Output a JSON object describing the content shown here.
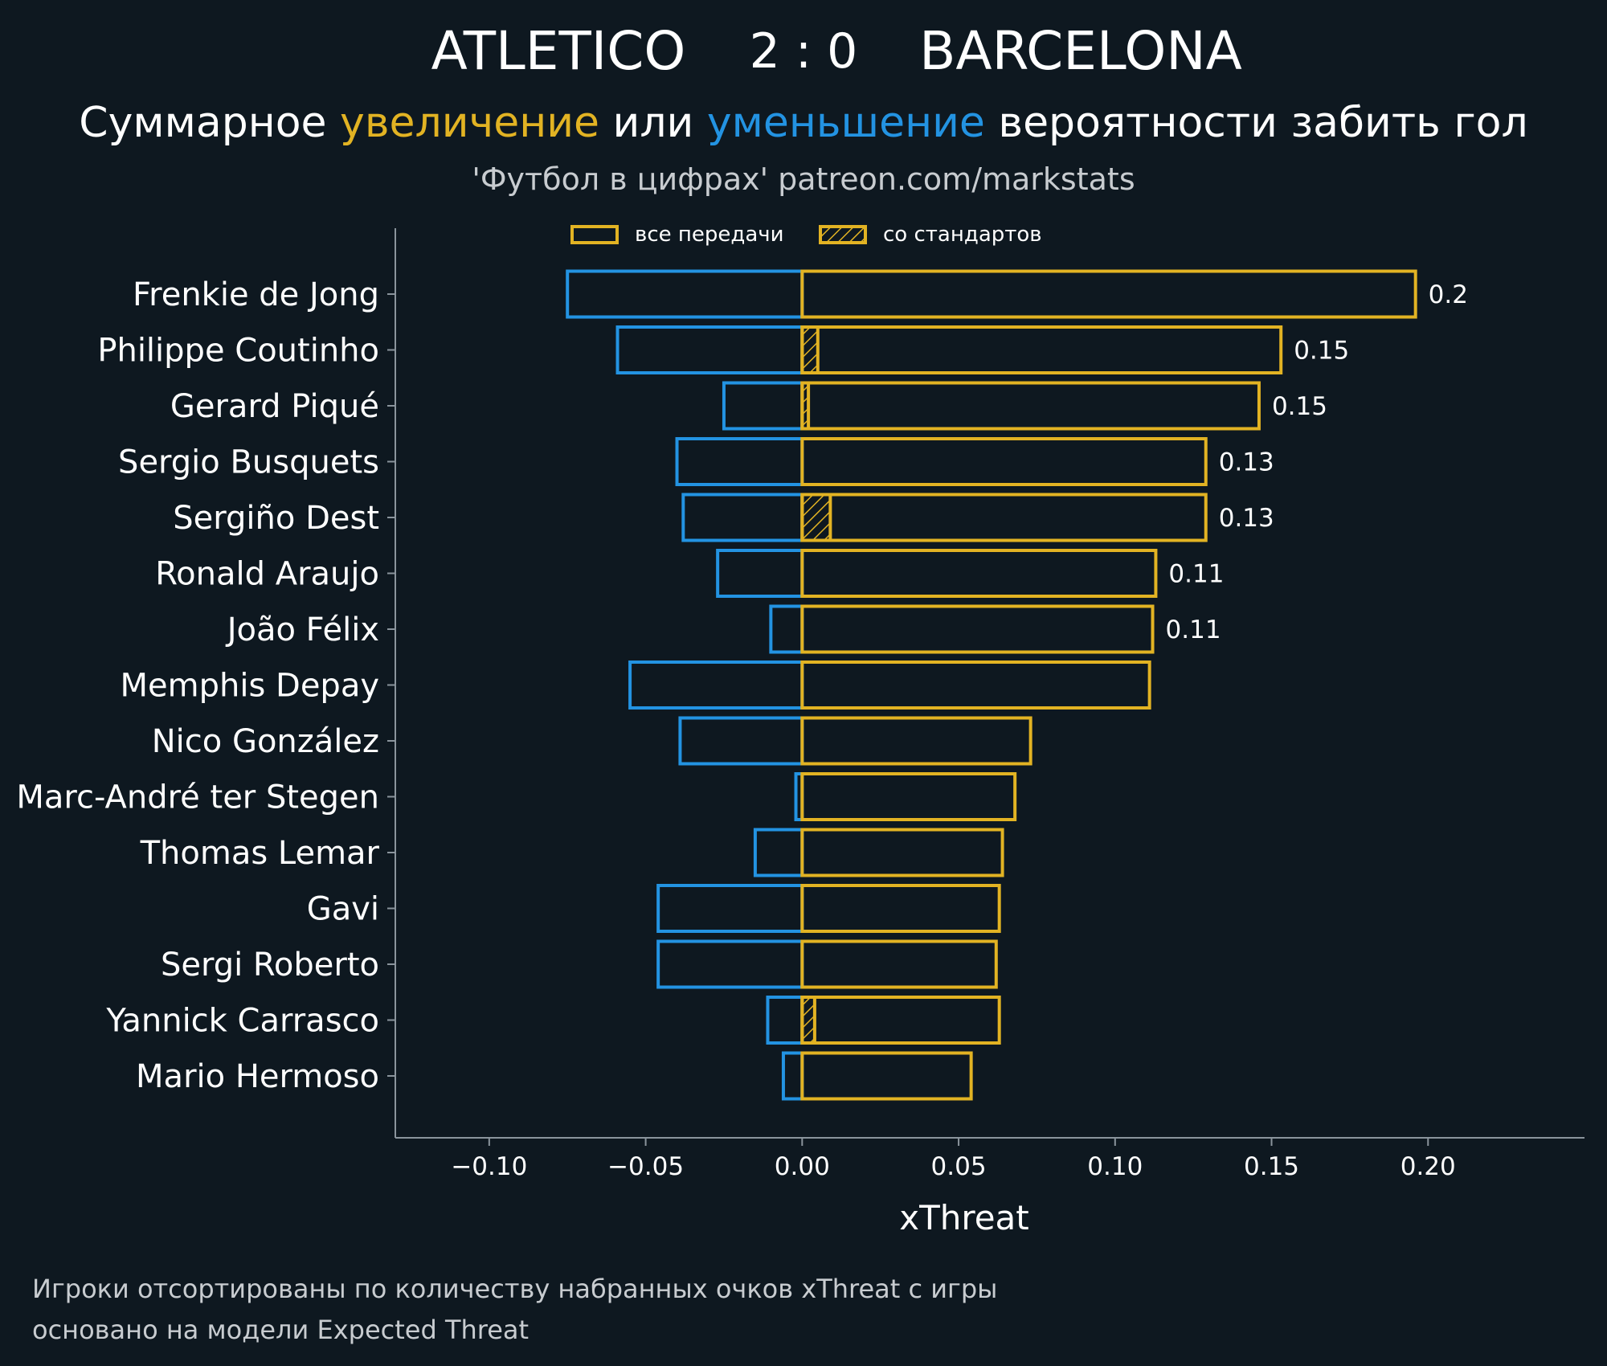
{
  "header": {
    "team_home": "ATLETICO",
    "score": "2 : 0",
    "team_away": "BARCELONA",
    "subtitle_pre": "Суммарное ",
    "subtitle_increase": "увеличение",
    "subtitle_mid": " или ",
    "subtitle_decrease": "уменьшение",
    "subtitle_post": " вероятности забить гол",
    "credit": "'Футбол в цифрах' patreon.com/markstats"
  },
  "footer": {
    "line1": "Игроки отсортированы по количеству набранных очков xThreat с игры",
    "line2": "основано на модели Expected Threat"
  },
  "colors": {
    "background": "#0e1820",
    "increase": "#e2b323",
    "decrease": "#2393e2",
    "text": "#ffffff",
    "muted_text": "#c8ccd0",
    "axis": "#8a949c"
  },
  "chart_data": {
    "type": "bar",
    "orientation": "horizontal",
    "xlabel": "xThreat",
    "xlim": [
      -0.13,
      0.25
    ],
    "xticks": [
      -0.1,
      -0.05,
      0.0,
      0.05,
      0.1,
      0.15,
      0.2
    ],
    "xtick_labels": [
      "−0.10",
      "−0.05",
      "0.00",
      "0.05",
      "0.10",
      "0.15",
      "0.20"
    ],
    "grid": false,
    "legend": {
      "position": "top",
      "entries": [
        "все передачи",
        "со стандартов"
      ]
    },
    "categories": [
      "Frenkie de Jong",
      "Philippe Coutinho",
      "Gerard Piqué",
      "Sergio Busquets",
      "Sergiño Dest",
      "Ronald Araujo",
      "João Félix",
      "Memphis Depay",
      "Nico González",
      "Marc-André ter Stegen",
      "Thomas Lemar",
      "Gavi",
      "Sergi Roberto",
      "Yannick Carrasco",
      "Mario Hermoso"
    ],
    "series": [
      {
        "name": "все передачи",
        "positive": [
          0.196,
          0.153,
          0.146,
          0.129,
          0.129,
          0.113,
          0.112,
          0.111,
          0.073,
          0.068,
          0.064,
          0.063,
          0.062,
          0.063,
          0.054
        ],
        "negative": [
          -0.075,
          -0.059,
          -0.025,
          -0.04,
          -0.038,
          -0.027,
          -0.01,
          -0.055,
          -0.039,
          -0.002,
          -0.015,
          -0.046,
          -0.046,
          -0.011,
          -0.006
        ]
      },
      {
        "name": "со стандартов",
        "positive": [
          0,
          0.005,
          0.002,
          0,
          0.009,
          0,
          0,
          0,
          0,
          0,
          0,
          0,
          0,
          0.004,
          0
        ]
      }
    ],
    "value_labels": [
      "0.2",
      "0.15",
      "0.15",
      "0.13",
      "0.13",
      "0.11",
      "0.11",
      "",
      "",
      "",
      "",
      "",
      "",
      "",
      ""
    ]
  }
}
